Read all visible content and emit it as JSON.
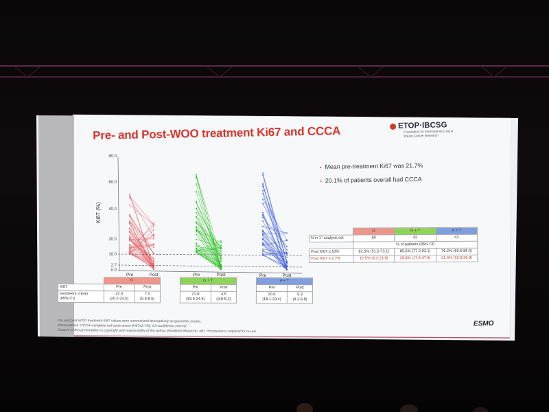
{
  "slide": {
    "title": "Pre- and Post-WOO treatment Ki67 and CCCA",
    "logo": {
      "name": "ETOP·IBCSG",
      "subtitle": "Foundation for International Lung & Breast Cancer Research"
    },
    "bullets": [
      "Mean pre-treatment Ki67 was 21.7%",
      "20.1% of patients overall had CCCA"
    ],
    "chart": {
      "ylabel": "Ki67 (%)",
      "yticks": [
        "80.0",
        "60.0",
        "40.0",
        "20.0",
        "10.0",
        "2.7",
        "0.0"
      ],
      "xlabels": [
        "Pre",
        "Post"
      ]
    },
    "table_right": {
      "groups": [
        "G",
        "G + T",
        "A + T"
      ],
      "n_label": "N in 1° analysis set",
      "n_values": [
        "80",
        "42",
        "43"
      ],
      "subheader": "% of patients (95% CI)",
      "rows": [
        {
          "label": "Post Ki67 ≤ 10%",
          "values": [
            "62.5% (51.0-73.1)",
            "85.6% (77.3-93.1)",
            "76.2% (60.6-88.0)"
          ]
        },
        {
          "label": "Post Ki67 ≤ 2.7%",
          "values": [
            "12.5% (6.2-21.8)",
            "26.8% (17.6-37.8)",
            "21.4% (10.3-36.8)"
          ]
        }
      ]
    },
    "table_bottom": {
      "groups": [
        "G",
        "G + T",
        "A + T"
      ],
      "ki67_label": "Ki67",
      "pre": "Pre",
      "post": "Post",
      "gm_label_1": "Geometric mean",
      "gm_label_2": "(95% CI)",
      "means": [
        "22.0",
        "7.0",
        "21.9",
        "4.5",
        "20.6",
        "5.3"
      ],
      "cis": [
        "(20.2-24.0)",
        "(5.8-8.5)",
        "(19.6-24.6)",
        "(3.9-5.2)",
        "(18.1-23.4)",
        "(4.1-6.8)"
      ]
    },
    "footnotes": [
      "Pre and post-WOO treatment Ki67 values were summarized descriptively as geometric means.",
      "Abbreviations: CCCA=complete cell cycle arrest (Ki67≤2.7%); CI=confidence interval",
      "Content of this presentation is copyright and responsibility of the author, Elisabetta Munzone, MD. Permission is required for re-use."
    ],
    "brand": "ESMO"
  },
  "colors": {
    "title": "#d9352b",
    "g": "#e8646a",
    "gt": "#27c21f",
    "at": "#3e5fe0",
    "g_header": "#f0958c",
    "gt_header": "#8fd45a",
    "at_header": "#7f9fe0"
  }
}
